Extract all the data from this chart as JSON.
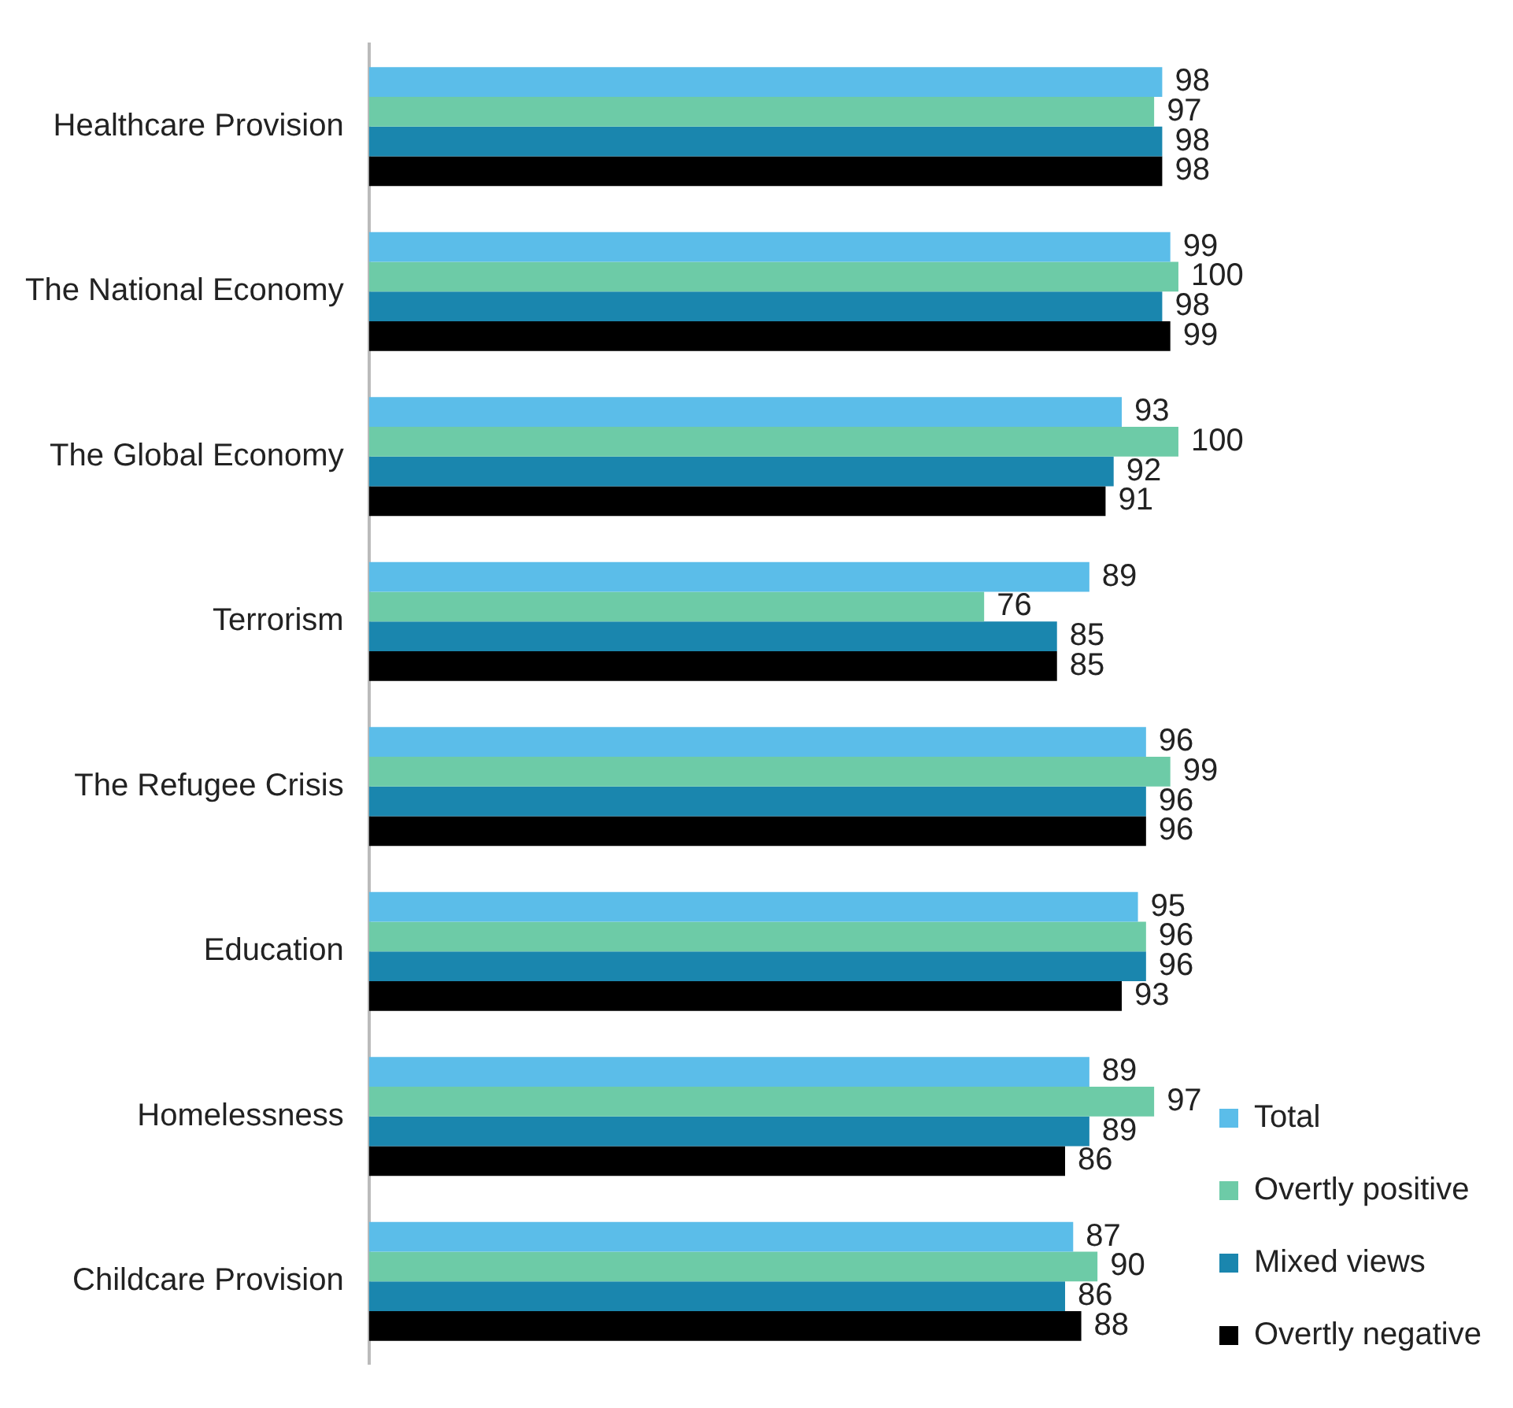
{
  "chart_data": {
    "type": "bar",
    "orientation": "horizontal",
    "categories": [
      "Healthcare Provision",
      "The National Economy",
      "The Global Economy",
      "Terrorism",
      "The Refugee Crisis",
      "Education",
      "Homelessness",
      "Childcare Provision"
    ],
    "series": [
      {
        "name": "Total",
        "color": "#5bbde9",
        "values": [
          98,
          99,
          93,
          89,
          96,
          95,
          89,
          87
        ]
      },
      {
        "name": "Overtly positive",
        "color": "#6dcba7",
        "values": [
          97,
          100,
          100,
          76,
          99,
          96,
          97,
          90
        ]
      },
      {
        "name": "Mixed views",
        "color": "#1a86ae",
        "values": [
          98,
          98,
          92,
          85,
          96,
          96,
          89,
          86
        ]
      },
      {
        "name": "Overtly negative",
        "color": "#000000",
        "values": [
          98,
          99,
          91,
          85,
          96,
          93,
          86,
          88
        ]
      }
    ],
    "tick_labels": "y",
    "grid": false,
    "legend": "bottom right",
    "data_labels": true
  }
}
